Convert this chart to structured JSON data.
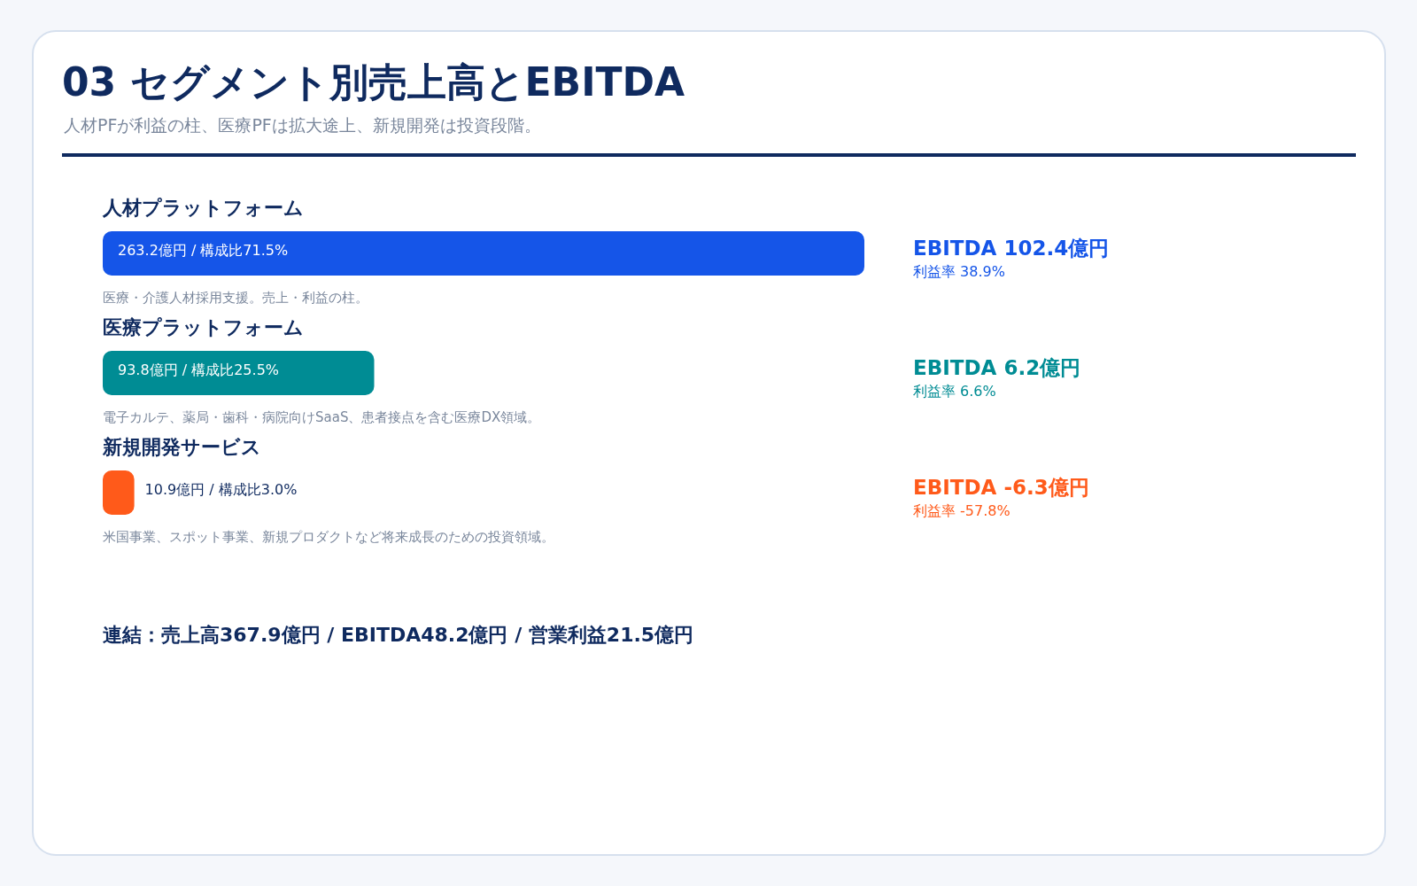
{
  "chart_data": {
    "type": "bar",
    "orientation": "horizontal",
    "title": "03 セグメント別売上高とEBITDA",
    "subtitle": "人材PFが利益の柱、医療PFは拡大途上、新規開発は投資段階。",
    "categories": [
      "人材プラットフォーム",
      "医療プラットフォーム",
      "新規開発サービス"
    ],
    "values": [
      263.2,
      93.8,
      10.9
    ],
    "colors": [
      "#1555e8",
      "#008c94",
      "#ff5a1a"
    ],
    "value_labels": [
      "263.2億円 / 構成比71.5%",
      "93.8億円 / 構成比25.5%",
      "10.9億円 / 構成比3.0%"
    ],
    "annotations": [
      "EBITDA 102.4億円",
      "利益率 38.9%",
      "医療・介護人材採用支援。売上・利益の柱。",
      "EBITDA 6.2億円",
      "利益率 6.6%",
      "電子カルテ、薬局・歯科・病院向けSaaS、患者接点を含む医療DX領域。",
      "EBITDA -6.3億円",
      "利益率 -57.8%",
      "米国事業、スポット事業、新規プロダクトなど将来成長のための投資領域。",
      "連結：売上高367.9億円 / EBITDA48.2億円 / 営業利益21.5億円"
    ]
  }
}
